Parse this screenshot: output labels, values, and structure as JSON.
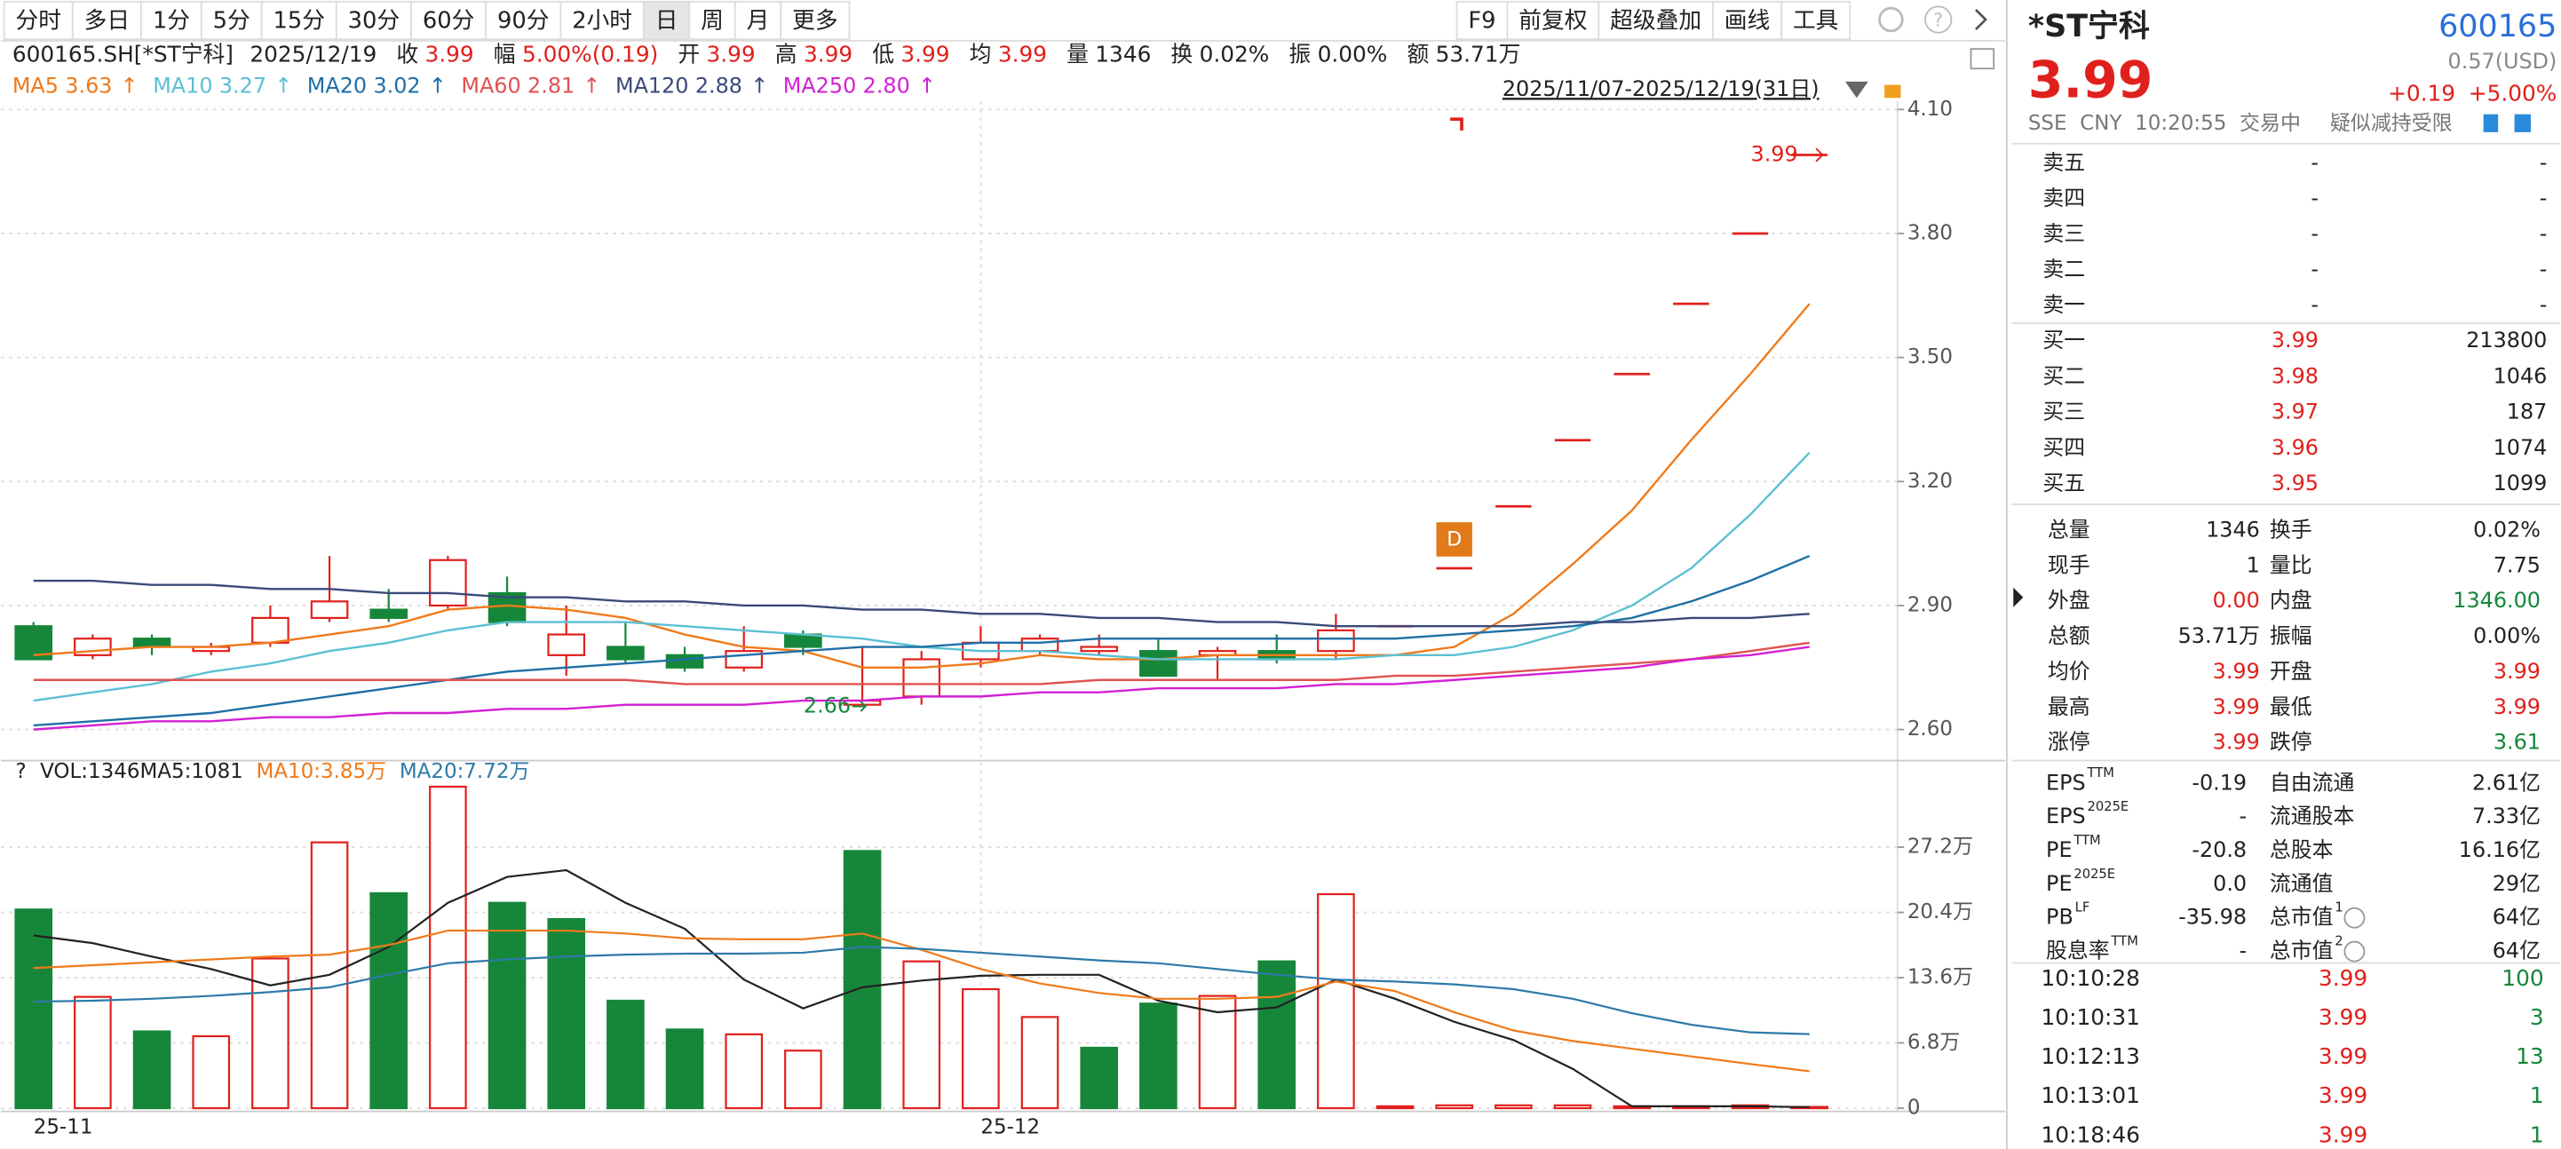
{
  "toolbar": {
    "periods": [
      "分时",
      "多日",
      "1分",
      "5分",
      "15分",
      "30分",
      "60分",
      "90分",
      "2小时",
      "日",
      "周",
      "月",
      "更多"
    ],
    "selected": 9,
    "tools": [
      "F9",
      "前复权",
      "超级叠加",
      "画线",
      "工具"
    ]
  },
  "info": {
    "symbol": "600165.SH[*ST宁科]",
    "date": "2025/12/19",
    "items": [
      {
        "label": "收",
        "value": "3.99",
        "color": "#e0201c"
      },
      {
        "label": "幅",
        "value": "5.00%(0.19)",
        "color": "#e0201c"
      },
      {
        "label": "开",
        "value": "3.99",
        "color": "#e0201c"
      },
      {
        "label": "高",
        "value": "3.99",
        "color": "#e0201c"
      },
      {
        "label": "低",
        "value": "3.99",
        "color": "#e0201c"
      },
      {
        "label": "均",
        "value": "3.99",
        "color": "#e0201c"
      },
      {
        "label": "量",
        "value": "1346",
        "color": "#222222"
      },
      {
        "label": "换",
        "value": "0.02%",
        "color": "#222222"
      },
      {
        "label": "振",
        "value": "0.00%",
        "color": "#222222"
      },
      {
        "label": "额",
        "value": "53.71万",
        "color": "#222222"
      }
    ]
  },
  "chart_data": [
    {
      "type": "candlestick",
      "date_range": "2025/11/07-2025/12/19(31日)",
      "marker": "D",
      "up_color": "#e0201c",
      "down_color": "#16873a",
      "categories": [
        "25-11",
        null,
        null,
        null,
        null,
        null,
        null,
        null,
        null,
        null,
        null,
        null,
        null,
        null,
        null,
        null,
        "25-12",
        null,
        null,
        null,
        null,
        null,
        null,
        null,
        null,
        null,
        null,
        null,
        null,
        null,
        null
      ],
      "candles": {
        "open": [
          2.85,
          2.78,
          2.82,
          2.79,
          2.81,
          2.87,
          2.89,
          2.9,
          2.93,
          2.78,
          2.8,
          2.78,
          2.75,
          2.83,
          2.66,
          2.68,
          2.77,
          2.79,
          2.79,
          2.79,
          2.78,
          2.79,
          2.79,
          2.85,
          2.99,
          3.14,
          3.3,
          3.46,
          3.63,
          3.8,
          3.99
        ],
        "high": [
          2.86,
          2.83,
          2.83,
          2.81,
          2.9,
          3.02,
          2.94,
          3.02,
          2.97,
          2.9,
          2.86,
          2.8,
          2.85,
          2.84,
          2.8,
          2.79,
          2.85,
          2.83,
          2.83,
          2.82,
          2.8,
          2.83,
          2.88,
          2.85,
          2.99,
          3.14,
          3.3,
          3.46,
          3.63,
          3.8,
          3.99
        ],
        "low": [
          2.77,
          2.77,
          2.78,
          2.78,
          2.8,
          2.86,
          2.86,
          2.89,
          2.85,
          2.73,
          2.76,
          2.74,
          2.74,
          2.78,
          2.66,
          2.66,
          2.75,
          2.78,
          2.78,
          2.73,
          2.72,
          2.76,
          2.77,
          2.85,
          2.99,
          3.14,
          3.3,
          3.46,
          3.63,
          3.8,
          3.99
        ],
        "close": [
          2.77,
          2.82,
          2.8,
          2.8,
          2.87,
          2.91,
          2.87,
          3.01,
          2.86,
          2.83,
          2.77,
          2.75,
          2.79,
          2.8,
          2.67,
          2.77,
          2.81,
          2.82,
          2.8,
          2.73,
          2.79,
          2.77,
          2.84,
          2.85,
          2.99,
          3.14,
          3.3,
          3.46,
          3.63,
          3.8,
          3.99
        ]
      },
      "series": [
        {
          "name": "MA5",
          "label": "3.63",
          "trend": "↑",
          "color": "#f07a1a",
          "values": [
            2.78,
            2.79,
            2.8,
            2.8,
            2.81,
            2.83,
            2.85,
            2.89,
            2.9,
            2.89,
            2.87,
            2.83,
            2.8,
            2.79,
            2.75,
            2.75,
            2.76,
            2.78,
            2.77,
            2.77,
            2.78,
            2.78,
            2.78,
            2.78,
            2.8,
            2.88,
            3.0,
            3.13,
            3.3,
            3.46,
            3.63
          ]
        },
        {
          "name": "MA10",
          "label": "3.27",
          "trend": "↑",
          "color": "#5bc0d3",
          "values": [
            2.67,
            2.69,
            2.71,
            2.74,
            2.76,
            2.79,
            2.81,
            2.84,
            2.86,
            2.86,
            2.86,
            2.85,
            2.84,
            2.83,
            2.82,
            2.8,
            2.79,
            2.79,
            2.78,
            2.77,
            2.77,
            2.77,
            2.77,
            2.78,
            2.78,
            2.8,
            2.84,
            2.9,
            2.99,
            3.12,
            3.27
          ]
        },
        {
          "name": "MA20",
          "label": "3.02",
          "trend": "↑",
          "color": "#1f6fa6",
          "values": [
            2.61,
            2.62,
            2.63,
            2.64,
            2.66,
            2.68,
            2.7,
            2.72,
            2.74,
            2.75,
            2.76,
            2.77,
            2.78,
            2.79,
            2.8,
            2.8,
            2.81,
            2.81,
            2.82,
            2.82,
            2.82,
            2.82,
            2.82,
            2.82,
            2.83,
            2.84,
            2.85,
            2.87,
            2.91,
            2.96,
            3.02
          ]
        },
        {
          "name": "MA60",
          "label": "2.81",
          "trend": "↑",
          "color": "#e05252",
          "values": [
            2.72,
            2.72,
            2.72,
            2.72,
            2.72,
            2.72,
            2.72,
            2.72,
            2.72,
            2.72,
            2.72,
            2.71,
            2.71,
            2.71,
            2.71,
            2.71,
            2.71,
            2.71,
            2.72,
            2.72,
            2.72,
            2.72,
            2.72,
            2.73,
            2.73,
            2.74,
            2.75,
            2.76,
            2.77,
            2.79,
            2.81
          ]
        },
        {
          "name": "MA120",
          "label": "2.88",
          "trend": "↑",
          "color": "#3b4a7a",
          "values": [
            2.96,
            2.96,
            2.95,
            2.95,
            2.94,
            2.94,
            2.93,
            2.93,
            2.92,
            2.92,
            2.91,
            2.91,
            2.9,
            2.9,
            2.89,
            2.89,
            2.88,
            2.88,
            2.87,
            2.87,
            2.86,
            2.86,
            2.85,
            2.85,
            2.85,
            2.85,
            2.86,
            2.86,
            2.87,
            2.87,
            2.88
          ]
        },
        {
          "name": "MA250",
          "label": "2.80",
          "trend": "↑",
          "color": "#d41fd4",
          "values": [
            2.6,
            2.61,
            2.62,
            2.62,
            2.63,
            2.63,
            2.64,
            2.64,
            2.65,
            2.65,
            2.66,
            2.66,
            2.66,
            2.67,
            2.67,
            2.68,
            2.68,
            2.69,
            2.69,
            2.7,
            2.7,
            2.7,
            2.71,
            2.71,
            2.72,
            2.73,
            2.74,
            2.75,
            2.77,
            2.78,
            2.8
          ]
        }
      ],
      "ylim": [
        2.525,
        4.12
      ],
      "yticks": [
        {
          "value": 2.6,
          "label": "2.60"
        },
        {
          "value": 2.9,
          "label": "2.90"
        },
        {
          "value": 3.2,
          "label": "3.20"
        },
        {
          "value": 3.5,
          "label": "3.50"
        },
        {
          "value": 3.8,
          "label": "3.80"
        },
        {
          "value": 4.1,
          "label": "4.10"
        }
      ],
      "grid": true
    },
    {
      "type": "bar",
      "help": "?",
      "label": "VOL:1346",
      "values": [
        20.7,
        11.6,
        8.0,
        7.5,
        15.6,
        27.7,
        22.4,
        33.5,
        21.4,
        19.7,
        11.2,
        8.2,
        7.7,
        6.0,
        26.8,
        15.3,
        12.4,
        9.5,
        6.3,
        10.9,
        11.7,
        15.3,
        22.3,
        0.2,
        0.3,
        0.3,
        0.3,
        0.2,
        0.2,
        0.3,
        0.1346
      ],
      "series": [
        {
          "name": "MA5:1081",
          "color": "#222222",
          "values": [
            18.0,
            17.2,
            15.8,
            14.5,
            12.8,
            13.9,
            16.8,
            21.4,
            24.1,
            24.8,
            21.4,
            18.7,
            13.4,
            10.4,
            12.6,
            13.3,
            13.8,
            13.9,
            13.9,
            11.2,
            10.0,
            10.5,
            13.4,
            11.4,
            9.0,
            7.1,
            4.1,
            0.2,
            0.2,
            0.2,
            0.1081
          ]
        },
        {
          "name": "MA10:3.85万",
          "color": "#f07a1a",
          "values": [
            14.6,
            14.9,
            15.2,
            15.5,
            15.8,
            16.0,
            17.0,
            18.5,
            18.5,
            18.5,
            18.2,
            17.7,
            17.6,
            17.6,
            18.2,
            16.5,
            14.5,
            13.0,
            12.0,
            11.4,
            11.4,
            11.6,
            13.2,
            12.2,
            10.0,
            8.1,
            7.0,
            6.2,
            5.4,
            4.6,
            3.85
          ]
        },
        {
          "name": "MA20:7.72万",
          "color": "#2d7aa8",
          "values": [
            11.1,
            11.2,
            11.4,
            11.7,
            12.1,
            12.6,
            13.9,
            15.1,
            15.5,
            15.8,
            16.0,
            16.1,
            16.1,
            16.2,
            16.8,
            16.6,
            16.2,
            15.8,
            15.4,
            15.1,
            14.5,
            13.9,
            13.4,
            13.2,
            12.9,
            12.4,
            11.4,
            9.9,
            8.7,
            7.9,
            7.72
          ]
        }
      ],
      "ylim": [
        0,
        33.5
      ],
      "yticks": [
        0,
        {
          "value": 6.8,
          "label": "6.8万"
        },
        {
          "value": 13.6,
          "label": "13.6万"
        },
        {
          "value": 20.4,
          "label": "20.4万"
        },
        {
          "value": 27.2,
          "label": "27.2万"
        }
      ],
      "grid": true
    }
  ],
  "quote": {
    "name": "*ST宁科",
    "code": "600165",
    "price": "3.99",
    "usd": "0.57(USD)",
    "change": "+0.19",
    "pct": "+5.00%",
    "tags": [
      "SSE",
      "CNY",
      "10:20:55",
      "交易中"
    ],
    "warning": "疑似减持受限"
  },
  "book": {
    "sell": [
      [
        "卖五",
        "-",
        "-"
      ],
      [
        "卖四",
        "-",
        "-"
      ],
      [
        "卖三",
        "-",
        "-"
      ],
      [
        "卖二",
        "-",
        "-"
      ],
      [
        "卖一",
        "-",
        "-"
      ]
    ],
    "buy": [
      [
        "买一",
        "3.99",
        "213800"
      ],
      [
        "买二",
        "3.98",
        "1046"
      ],
      [
        "买三",
        "3.97",
        "187"
      ],
      [
        "买四",
        "3.96",
        "1074"
      ],
      [
        "买五",
        "3.95",
        "1099"
      ]
    ]
  },
  "stats": [
    [
      "总量",
      "1346",
      "换手",
      "0.02%"
    ],
    [
      "现手",
      "1",
      "量比",
      "7.75"
    ],
    [
      "外盘",
      "0.00",
      "内盘",
      "1346.00"
    ],
    [
      "总额",
      "53.71万",
      "振幅",
      "0.00%"
    ],
    [
      "均价",
      "3.99",
      "开盘",
      "3.99"
    ],
    [
      "最高",
      "3.99",
      "最低",
      "3.99"
    ],
    [
      "涨停",
      "3.99",
      "跌停",
      "3.61"
    ]
  ],
  "finance": [
    {
      "label": "EPS",
      "sup": "TTM",
      "value": "-0.19",
      "label2": "自由流通",
      "value2": "2.61亿"
    },
    {
      "label": "EPS",
      "sup": "2025E",
      "value": "-",
      "label2": "流通股本",
      "value2": "7.33亿"
    },
    {
      "label": "PE",
      "sup": "TTM",
      "value": "-20.8",
      "label2": "总股本",
      "value2": "16.16亿"
    },
    {
      "label": "PE",
      "sup": "2025E",
      "value": "0.0",
      "label2": "流通值",
      "value2": "29亿"
    },
    {
      "label": "PB",
      "sup": "LF",
      "value": "-35.98",
      "label2": "总市值",
      "sup2": "1",
      "value2": "64亿"
    },
    {
      "label": "股息率",
      "sup": "TTM",
      "value": "-",
      "label2": "总市值",
      "sup2": "2",
      "value2": "64亿"
    }
  ],
  "trades": [
    [
      "10:10:28",
      "3.99",
      "100"
    ],
    [
      "10:10:31",
      "3.99",
      "3"
    ],
    [
      "10:12:13",
      "3.99",
      "13"
    ],
    [
      "10:13:01",
      "3.99",
      "1"
    ],
    [
      "10:18:46",
      "3.99",
      "1"
    ]
  ]
}
